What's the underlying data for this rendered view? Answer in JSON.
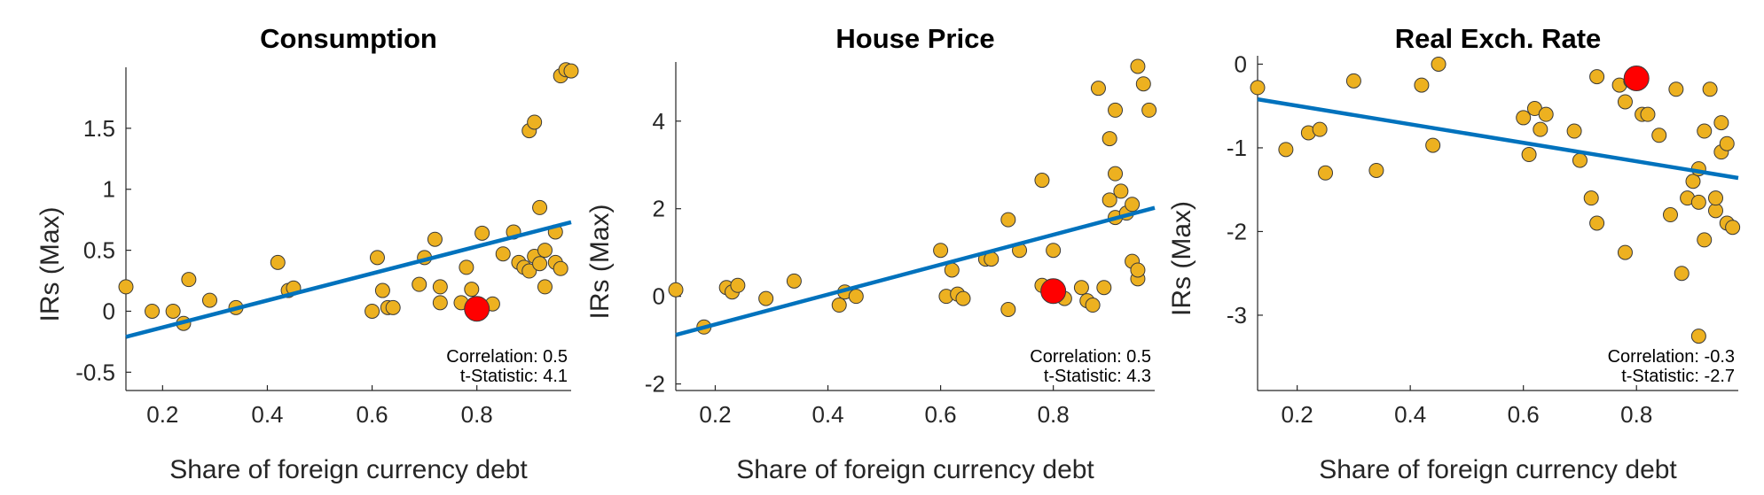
{
  "chart_data": [
    {
      "type": "scatter",
      "title": "Consumption",
      "xlabel": "Share of foreign currency debt",
      "ylabel": "IRs (Max)",
      "xlim": [
        0.13,
        0.98
      ],
      "ylim": [
        -0.65,
        2.0
      ],
      "xticks": [
        0.2,
        0.4,
        0.6,
        0.8
      ],
      "xtick_labels": [
        "0.2",
        "0.4",
        "0.6",
        "0.8"
      ],
      "yticks": [
        -0.5,
        0,
        0.5,
        1,
        1.5
      ],
      "ytick_labels": [
        "-0.5",
        "0",
        "0.5",
        "1",
        "1.5"
      ],
      "points": [
        [
          0.13,
          0.2
        ],
        [
          0.18,
          0.0
        ],
        [
          0.22,
          0.0
        ],
        [
          0.24,
          -0.1
        ],
        [
          0.25,
          0.26
        ],
        [
          0.29,
          0.09
        ],
        [
          0.34,
          0.03
        ],
        [
          0.42,
          0.4
        ],
        [
          0.44,
          0.17
        ],
        [
          0.45,
          0.19
        ],
        [
          0.6,
          0.0
        ],
        [
          0.61,
          0.44
        ],
        [
          0.62,
          0.17
        ],
        [
          0.63,
          0.03
        ],
        [
          0.64,
          0.03
        ],
        [
          0.69,
          0.22
        ],
        [
          0.7,
          0.44
        ],
        [
          0.72,
          0.59
        ],
        [
          0.73,
          0.2
        ],
        [
          0.73,
          0.07
        ],
        [
          0.77,
          0.07
        ],
        [
          0.78,
          0.36
        ],
        [
          0.79,
          0.18
        ],
        [
          0.81,
          0.64
        ],
        [
          0.83,
          0.06
        ],
        [
          0.85,
          0.47
        ],
        [
          0.87,
          0.65
        ],
        [
          0.88,
          0.4
        ],
        [
          0.89,
          0.36
        ],
        [
          0.9,
          0.33
        ],
        [
          0.91,
          0.45
        ],
        [
          0.92,
          0.39
        ],
        [
          0.9,
          1.48
        ],
        [
          0.91,
          1.55
        ],
        [
          0.92,
          0.85
        ],
        [
          0.93,
          0.5
        ],
        [
          0.93,
          0.2
        ],
        [
          0.95,
          0.4
        ],
        [
          0.95,
          0.65
        ],
        [
          0.96,
          0.35
        ],
        [
          0.96,
          1.93
        ],
        [
          0.97,
          1.98
        ],
        [
          0.98,
          1.97
        ]
      ],
      "highlight": [
        0.8,
        0.02
      ],
      "fit_line": {
        "x": [
          0.13,
          0.98
        ],
        "y": [
          -0.21,
          0.73
        ]
      },
      "annotations": [
        "Correlation: 0.5",
        "t-Statistic: 4.1"
      ]
    },
    {
      "type": "scatter",
      "title": "House Price",
      "xlabel": "Share of foreign currency debt",
      "ylabel": "IRs (Max)",
      "xlim": [
        0.13,
        0.98
      ],
      "ylim": [
        -2.15,
        5.35
      ],
      "xticks": [
        0.2,
        0.4,
        0.6,
        0.8
      ],
      "xtick_labels": [
        "0.2",
        "0.4",
        "0.6",
        "0.8"
      ],
      "yticks": [
        -2,
        0,
        2,
        4
      ],
      "ytick_labels": [
        "-2",
        "0",
        "2",
        "4"
      ],
      "points": [
        [
          0.13,
          0.15
        ],
        [
          0.18,
          -0.7
        ],
        [
          0.22,
          0.2
        ],
        [
          0.23,
          0.1
        ],
        [
          0.24,
          0.25
        ],
        [
          0.29,
          -0.05
        ],
        [
          0.34,
          0.35
        ],
        [
          0.42,
          -0.2
        ],
        [
          0.43,
          0.1
        ],
        [
          0.45,
          0.0
        ],
        [
          0.6,
          1.05
        ],
        [
          0.61,
          0.0
        ],
        [
          0.62,
          0.6
        ],
        [
          0.63,
          0.05
        ],
        [
          0.64,
          -0.05
        ],
        [
          0.68,
          0.85
        ],
        [
          0.69,
          0.85
        ],
        [
          0.72,
          -0.3
        ],
        [
          0.72,
          1.75
        ],
        [
          0.74,
          1.05
        ],
        [
          0.78,
          2.65
        ],
        [
          0.78,
          0.25
        ],
        [
          0.8,
          1.05
        ],
        [
          0.82,
          -0.05
        ],
        [
          0.85,
          0.2
        ],
        [
          0.86,
          -0.1
        ],
        [
          0.87,
          -0.2
        ],
        [
          0.88,
          4.75
        ],
        [
          0.89,
          0.2
        ],
        [
          0.9,
          3.6
        ],
        [
          0.9,
          2.2
        ],
        [
          0.91,
          2.8
        ],
        [
          0.91,
          1.8
        ],
        [
          0.91,
          4.25
        ],
        [
          0.92,
          2.4
        ],
        [
          0.93,
          1.9
        ],
        [
          0.94,
          0.8
        ],
        [
          0.94,
          2.1
        ],
        [
          0.95,
          0.4
        ],
        [
          0.95,
          0.6
        ],
        [
          0.95,
          5.25
        ],
        [
          0.96,
          4.85
        ],
        [
          0.97,
          4.25
        ]
      ],
      "highlight": [
        0.8,
        0.12
      ],
      "fit_line": {
        "x": [
          0.13,
          0.98
        ],
        "y": [
          -0.88,
          2.02
        ]
      },
      "annotations": [
        "Correlation: 0.5",
        "t-Statistic: 4.3"
      ]
    },
    {
      "type": "scatter",
      "title": "Real Exch. Rate",
      "xlabel": "Share of foreign currency debt",
      "ylabel": "IRs (Max)",
      "xlim": [
        0.13,
        0.98
      ],
      "ylim": [
        -3.9,
        0.1
      ],
      "xticks": [
        0.2,
        0.4,
        0.6,
        0.8
      ],
      "xtick_labels": [
        "0.2",
        "0.4",
        "0.6",
        "0.8"
      ],
      "yticks": [
        -3,
        -2,
        -1,
        0
      ],
      "ytick_labels": [
        "-3",
        "-2",
        "-1",
        "0"
      ],
      "points": [
        [
          0.13,
          -0.28
        ],
        [
          0.18,
          -1.02
        ],
        [
          0.22,
          -0.82
        ],
        [
          0.24,
          -0.78
        ],
        [
          0.25,
          -1.3
        ],
        [
          0.3,
          -0.2
        ],
        [
          0.34,
          -1.27
        ],
        [
          0.42,
          -0.25
        ],
        [
          0.44,
          -0.97
        ],
        [
          0.45,
          0.0
        ],
        [
          0.6,
          -0.64
        ],
        [
          0.61,
          -1.08
        ],
        [
          0.62,
          -0.53
        ],
        [
          0.63,
          -0.78
        ],
        [
          0.64,
          -0.6
        ],
        [
          0.69,
          -0.8
        ],
        [
          0.7,
          -1.15
        ],
        [
          0.72,
          -1.6
        ],
        [
          0.73,
          -1.9
        ],
        [
          0.73,
          -0.15
        ],
        [
          0.77,
          -0.25
        ],
        [
          0.78,
          -0.45
        ],
        [
          0.78,
          -2.25
        ],
        [
          0.79,
          -0.2
        ],
        [
          0.81,
          -0.6
        ],
        [
          0.82,
          -0.6
        ],
        [
          0.84,
          -0.85
        ],
        [
          0.86,
          -1.8
        ],
        [
          0.87,
          -0.3
        ],
        [
          0.88,
          -2.5
        ],
        [
          0.89,
          -1.6
        ],
        [
          0.9,
          -1.4
        ],
        [
          0.91,
          -1.65
        ],
        [
          0.91,
          -1.25
        ],
        [
          0.91,
          -3.25
        ],
        [
          0.92,
          -0.8
        ],
        [
          0.92,
          -2.1
        ],
        [
          0.93,
          -0.3
        ],
        [
          0.94,
          -1.75
        ],
        [
          0.94,
          -1.6
        ],
        [
          0.95,
          -0.7
        ],
        [
          0.95,
          -1.05
        ],
        [
          0.96,
          -0.95
        ],
        [
          0.96,
          -1.9
        ],
        [
          0.97,
          -1.95
        ]
      ],
      "highlight": [
        0.8,
        -0.17
      ],
      "fit_line": {
        "x": [
          0.13,
          0.98
        ],
        "y": [
          -0.42,
          -1.36
        ]
      },
      "annotations": [
        "Correlation: -0.3",
        "t-Statistic: -2.7"
      ]
    }
  ],
  "colors": {
    "point_fill": "#edb120",
    "point_stroke": "#3a3a3a",
    "highlight_fill": "#ff0000",
    "fit_line": "#0072bd"
  }
}
